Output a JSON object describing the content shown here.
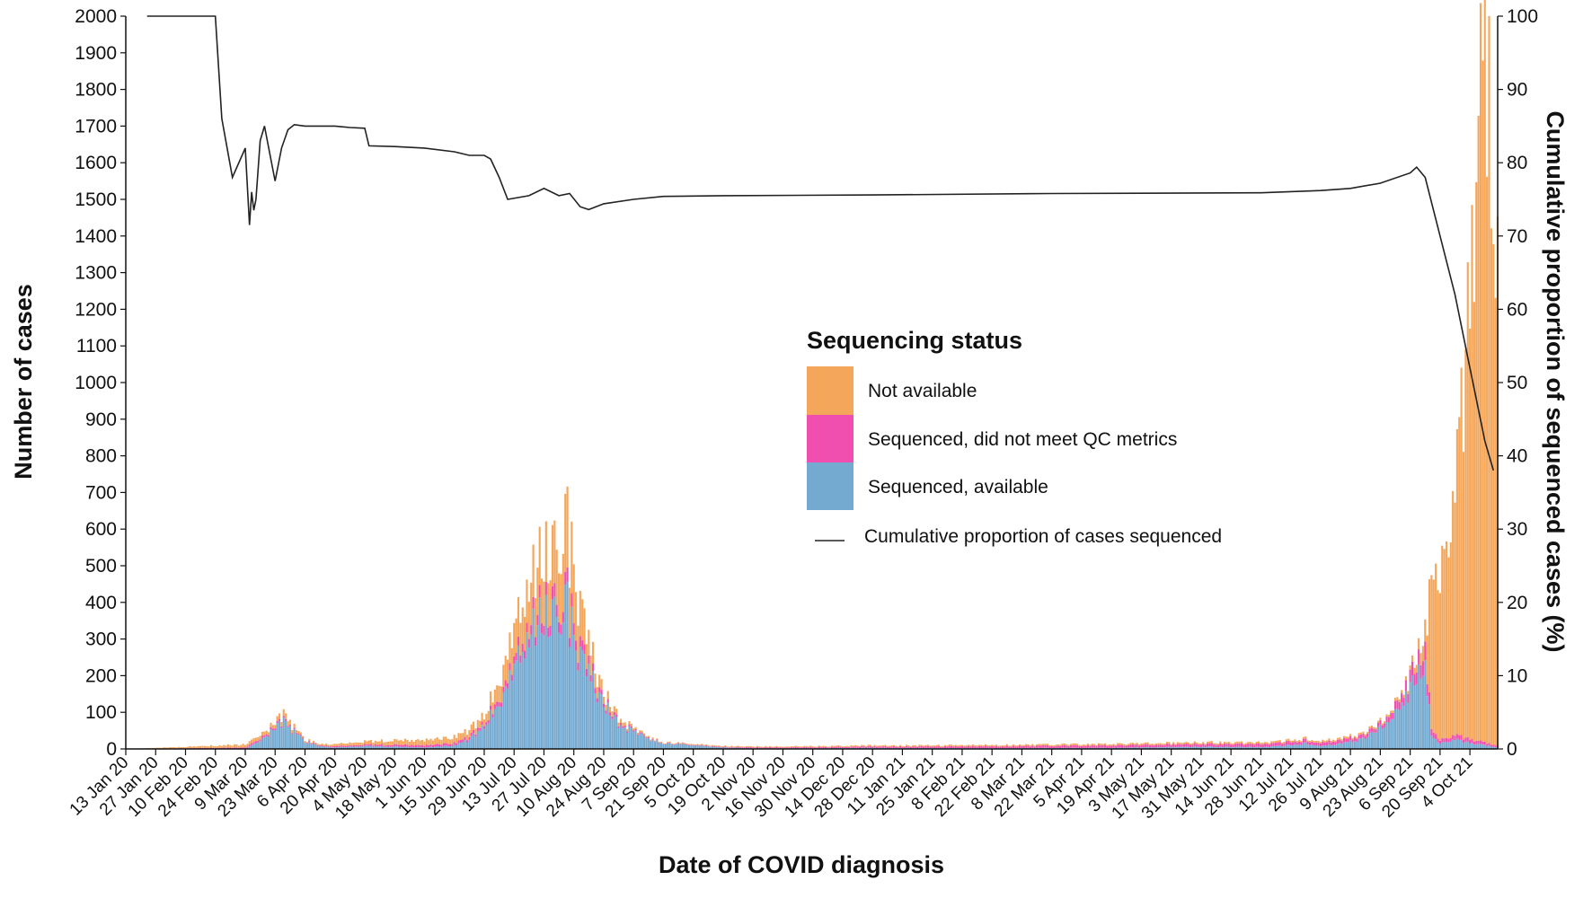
{
  "chart_data": {
    "type": "bar",
    "stacked": true,
    "xlabel": "Date of COVID diagnosis",
    "ylabel": "Number of cases",
    "y2label": "Cumulative proportion of sequenced cases (%)",
    "ylim": [
      0,
      2000
    ],
    "y2lim": [
      0,
      100
    ],
    "yticks": [
      0,
      100,
      200,
      300,
      400,
      500,
      600,
      700,
      800,
      900,
      1000,
      1100,
      1200,
      1300,
      1400,
      1500,
      1600,
      1700,
      1800,
      1900,
      2000
    ],
    "y2ticks": [
      0,
      10,
      20,
      30,
      40,
      50,
      60,
      70,
      80,
      90,
      100
    ],
    "x_start": "13 Jan 20",
    "x_end": "17 Oct 21",
    "x_tick_labels": [
      "13 Jan 20",
      "27 Jan 20",
      "10 Feb 20",
      "24 Feb 20",
      "9 Mar 20",
      "23 Mar 20",
      "6 Apr 20",
      "20 Apr 20",
      "4 May 20",
      "18 May 20",
      "1 Jun 20",
      "15 Jun 20",
      "29 Jun 20",
      "13 Jul 20",
      "27 Jul 20",
      "10 Aug 20",
      "24 Aug 20",
      "7 Sep 20",
      "21 Sep 20",
      "5 Oct 20",
      "19 Oct 20",
      "2 Nov 20",
      "16 Nov 20",
      "30 Nov 20",
      "14 Dec 20",
      "28 Dec 20",
      "11 Jan 21",
      "25 Jan 21",
      "8 Feb 21",
      "22 Feb 21",
      "8 Mar 21",
      "22 Mar 21",
      "5 Apr 21",
      "19 Apr 21",
      "3 May 21",
      "17 May 21",
      "31 May 21",
      "14 Jun 21",
      "28 Jun 21",
      "12 Jul 21",
      "26 Jul 21",
      "9 Aug 21",
      "23 Aug 21",
      "6 Sep 21",
      "20 Sep 21",
      "4 Oct 21"
    ],
    "grid": false,
    "legend": {
      "title": "Sequencing status",
      "placement": "center-right",
      "entries": [
        {
          "label": "Not available",
          "color": "#f4a65a"
        },
        {
          "label": "Sequenced, did not meet QC metrics",
          "color": "#f04fb0"
        },
        {
          "label": "Sequenced, available",
          "color": "#74a9d0"
        },
        {
          "label": "Cumulative proportion of cases sequenced",
          "color": "#222222",
          "marker": "line"
        }
      ]
    },
    "series": [
      {
        "name": "Sequenced, available",
        "color": "#74a9d0",
        "points": [
          [
            "13 Jan 20",
            0
          ],
          [
            "9 Mar 20",
            0
          ],
          [
            "16 Mar 20",
            20
          ],
          [
            "23 Mar 20",
            55
          ],
          [
            "27 Mar 20",
            70
          ],
          [
            "30 Mar 20",
            55
          ],
          [
            "6 Apr 20",
            20
          ],
          [
            "13 Apr 20",
            8
          ],
          [
            "20 Apr 20",
            4
          ],
          [
            "4 May 20",
            8
          ],
          [
            "18 May 20",
            6
          ],
          [
            "1 Jun 20",
            4
          ],
          [
            "15 Jun 20",
            10
          ],
          [
            "22 Jun 20",
            25
          ],
          [
            "29 Jun 20",
            60
          ],
          [
            "6 Jul 20",
            130
          ],
          [
            "13 Jul 20",
            230
          ],
          [
            "20 Jul 20",
            300
          ],
          [
            "27 Jul 20",
            360
          ],
          [
            "3 Aug 20",
            380
          ],
          [
            "6 Aug 20",
            420
          ],
          [
            "10 Aug 20",
            290
          ],
          [
            "17 Aug 20",
            200
          ],
          [
            "24 Aug 20",
            120
          ],
          [
            "31 Aug 20",
            70
          ],
          [
            "7 Sep 20",
            45
          ],
          [
            "14 Sep 20",
            28
          ],
          [
            "21 Sep 20",
            15
          ],
          [
            "5 Oct 20",
            10
          ],
          [
            "19 Oct 20",
            4
          ],
          [
            "2 Nov 20",
            2
          ],
          [
            "30 Nov 20",
            2
          ],
          [
            "28 Dec 20",
            3
          ],
          [
            "8 Feb 21",
            2
          ],
          [
            "19 Apr 21",
            3
          ],
          [
            "31 May 21",
            6
          ],
          [
            "28 Jun 21",
            5
          ],
          [
            "12 Jul 21",
            10
          ],
          [
            "19 Jul 21",
            15
          ],
          [
            "26 Jul 21",
            8
          ],
          [
            "2 Aug 21",
            12
          ],
          [
            "9 Aug 21",
            20
          ],
          [
            "16 Aug 21",
            30
          ],
          [
            "23 Aug 21",
            55
          ],
          [
            "30 Aug 21",
            95
          ],
          [
            "6 Sep 21",
            160
          ],
          [
            "10 Sep 21",
            230
          ],
          [
            "13 Sep 21",
            240
          ],
          [
            "16 Sep 21",
            30
          ],
          [
            "20 Sep 21",
            15
          ],
          [
            "27 Sep 21",
            25
          ],
          [
            "4 Oct 21",
            15
          ],
          [
            "11 Oct 21",
            10
          ],
          [
            "17 Oct 21",
            5
          ]
        ]
      },
      {
        "name": "Sequenced, did not meet QC metrics",
        "color": "#f04fb0",
        "points": [
          [
            "13 Jan 20",
            0
          ],
          [
            "23 Mar 20",
            5
          ],
          [
            "6 Apr 20",
            2
          ],
          [
            "29 Jun 20",
            8
          ],
          [
            "13 Jul 20",
            20
          ],
          [
            "27 Jul 20",
            30
          ],
          [
            "3 Aug 20",
            35
          ],
          [
            "10 Aug 20",
            30
          ],
          [
            "24 Aug 20",
            10
          ],
          [
            "7 Sep 20",
            3
          ],
          [
            "21 Sep 20",
            1
          ],
          [
            "23 Aug 21",
            10
          ],
          [
            "6 Sep 21",
            30
          ],
          [
            "13 Sep 21",
            50
          ],
          [
            "16 Sep 21",
            15
          ],
          [
            "20 Sep 21",
            10
          ],
          [
            "27 Sep 21",
            12
          ],
          [
            "4 Oct 21",
            10
          ],
          [
            "17 Oct 21",
            5
          ]
        ]
      },
      {
        "name": "Not available",
        "color": "#f4a65a",
        "points": [
          [
            "13 Jan 20",
            0
          ],
          [
            "23 Mar 20",
            10
          ],
          [
            "27 Mar 20",
            15
          ],
          [
            "6 Apr 20",
            3
          ],
          [
            "29 Jun 20",
            20
          ],
          [
            "6 Jul 20",
            50
          ],
          [
            "13 Jul 20",
            90
          ],
          [
            "20 Jul 20",
            110
          ],
          [
            "27 Jul 20",
            140
          ],
          [
            "3 Aug 20",
            160
          ],
          [
            "6 Aug 20",
            200
          ],
          [
            "10 Aug 20",
            150
          ],
          [
            "17 Aug 20",
            60
          ],
          [
            "24 Aug 20",
            20
          ],
          [
            "7 Sep 20",
            5
          ],
          [
            "21 Sep 20",
            2
          ],
          [
            "23 Aug 21",
            5
          ],
          [
            "6 Sep 21",
            10
          ],
          [
            "10 Sep 21",
            30
          ],
          [
            "13 Sep 21",
            60
          ],
          [
            "16 Sep 21",
            350
          ],
          [
            "20 Sep 21",
            450
          ],
          [
            "27 Sep 21",
            650
          ],
          [
            "1 Oct 21",
            900
          ],
          [
            "4 Oct 21",
            1150
          ],
          [
            "8 Oct 21",
            1600
          ],
          [
            "11 Oct 21",
            1780
          ],
          [
            "13 Oct 21",
            1850
          ],
          [
            "15 Oct 21",
            1550
          ],
          [
            "17 Oct 21",
            1350
          ]
        ]
      },
      {
        "name": "Cumulative proportion of cases sequenced",
        "axis": "right",
        "type": "line",
        "color": "#222222",
        "points": [
          [
            "23 Jan 20",
            100
          ],
          [
            "24 Feb 20",
            100
          ],
          [
            "27 Feb 20",
            86
          ],
          [
            "3 Mar 20",
            78
          ],
          [
            "9 Mar 20",
            82
          ],
          [
            "11 Mar 20",
            71.5
          ],
          [
            "12 Mar 20",
            76
          ],
          [
            "13 Mar 20",
            73.5
          ],
          [
            "14 Mar 20",
            75
          ],
          [
            "16 Mar 20",
            83
          ],
          [
            "18 Mar 20",
            85
          ],
          [
            "20 Mar 20",
            82
          ],
          [
            "23 Mar 20",
            77.5
          ],
          [
            "26 Mar 20",
            82
          ],
          [
            "29 Mar 20",
            84.5
          ],
          [
            "1 Apr 20",
            85.2
          ],
          [
            "6 Apr 20",
            85
          ],
          [
            "20 Apr 20",
            85
          ],
          [
            "27 Apr 20",
            84.8
          ],
          [
            "4 May 20",
            84.7
          ],
          [
            "6 May 20",
            82.3
          ],
          [
            "18 May 20",
            82.2
          ],
          [
            "1 Jun 20",
            82
          ],
          [
            "15 Jun 20",
            81.5
          ],
          [
            "22 Jun 20",
            81
          ],
          [
            "29 Jun 20",
            81
          ],
          [
            "2 Jul 20",
            80.5
          ],
          [
            "6 Jul 20",
            78
          ],
          [
            "10 Jul 20",
            75
          ],
          [
            "20 Jul 20",
            75.5
          ],
          [
            "27 Jul 20",
            76.5
          ],
          [
            "3 Aug 20",
            75.5
          ],
          [
            "8 Aug 20",
            75.8
          ],
          [
            "13 Aug 20",
            74
          ],
          [
            "17 Aug 20",
            73.6
          ],
          [
            "24 Aug 20",
            74.4
          ],
          [
            "7 Sep 20",
            75
          ],
          [
            "21 Sep 20",
            75.4
          ],
          [
            "19 Oct 20",
            75.5
          ],
          [
            "28 Dec 20",
            75.6
          ],
          [
            "22 Mar 21",
            75.8
          ],
          [
            "28 Jun 21",
            75.9
          ],
          [
            "26 Jul 21",
            76.2
          ],
          [
            "9 Aug 21",
            76.5
          ],
          [
            "23 Aug 21",
            77.2
          ],
          [
            "6 Sep 21",
            78.6
          ],
          [
            "9 Sep 21",
            79.4
          ],
          [
            "13 Sep 21",
            78
          ],
          [
            "20 Sep 21",
            70
          ],
          [
            "27 Sep 21",
            62
          ],
          [
            "4 Oct 21",
            52
          ],
          [
            "11 Oct 21",
            42
          ],
          [
            "15 Oct 21",
            38
          ]
        ]
      }
    ]
  }
}
